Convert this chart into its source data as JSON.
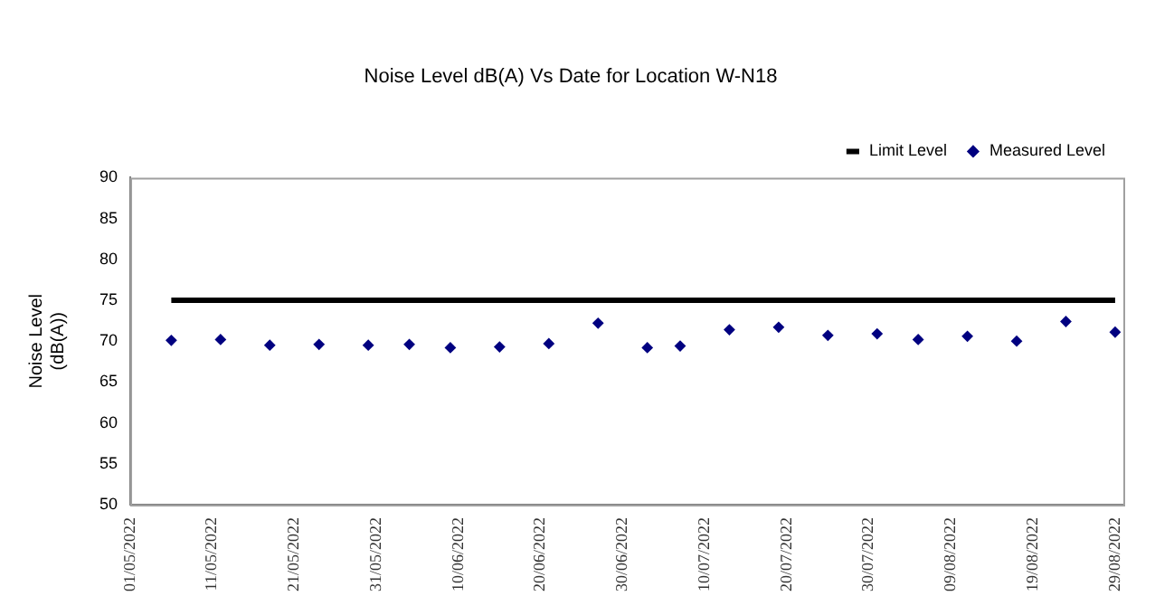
{
  "chart_data": {
    "type": "scatter",
    "title": "Noise Level dB(A) Vs Date for Location W-N18",
    "ylabel": "Noise Level (dB(A))",
    "series": [
      {
        "name": "Limit Level",
        "type": "line",
        "color": "#000000",
        "x": [
          "2022-05-06",
          "2022-08-29"
        ],
        "values": [
          75,
          75
        ],
        "marker": "none",
        "line_style": "solid"
      },
      {
        "name": "Measured Level",
        "type": "scatter",
        "color": "#000080",
        "marker": "diamond",
        "x": [
          "2022-05-06",
          "2022-05-12",
          "2022-05-18",
          "2022-05-24",
          "2022-05-30",
          "2022-06-04",
          "2022-06-09",
          "2022-06-15",
          "2022-06-21",
          "2022-06-27",
          "2022-07-03",
          "2022-07-07",
          "2022-07-13",
          "2022-07-19",
          "2022-07-25",
          "2022-07-31",
          "2022-08-05",
          "2022-08-11",
          "2022-08-17",
          "2022-08-23",
          "2022-08-29"
        ],
        "values": [
          70.1,
          70.2,
          69.5,
          69.6,
          69.5,
          69.6,
          69.2,
          69.3,
          69.7,
          72.2,
          69.2,
          69.4,
          71.4,
          71.7,
          70.7,
          70.9,
          70.2,
          70.6,
          70.0,
          72.4,
          71.1
        ]
      }
    ],
    "xlim": [
      "2022-05-01",
      "2022-08-30"
    ],
    "xticks": [
      {
        "value": "2022-05-01",
        "label": "01/05/2022"
      },
      {
        "value": "2022-05-11",
        "label": "11/05/2022"
      },
      {
        "value": "2022-05-21",
        "label": "21/05/2022"
      },
      {
        "value": "2022-05-31",
        "label": "31/05/2022"
      },
      {
        "value": "2022-06-10",
        "label": "10/06/2022"
      },
      {
        "value": "2022-06-20",
        "label": "20/06/2022"
      },
      {
        "value": "2022-06-30",
        "label": "30/06/2022"
      },
      {
        "value": "2022-07-10",
        "label": "10/07/2022"
      },
      {
        "value": "2022-07-20",
        "label": "20/07/2022"
      },
      {
        "value": "2022-07-30",
        "label": "30/07/2022"
      },
      {
        "value": "2022-08-09",
        "label": "09/08/2022"
      },
      {
        "value": "2022-08-19",
        "label": "19/08/2022"
      },
      {
        "value": "2022-08-29",
        "label": "29/08/2022"
      }
    ],
    "ylim": [
      50,
      90
    ],
    "yticks": [
      50,
      55,
      60,
      65,
      70,
      75,
      80,
      85,
      90
    ],
    "grid": false,
    "legend": "top right"
  }
}
